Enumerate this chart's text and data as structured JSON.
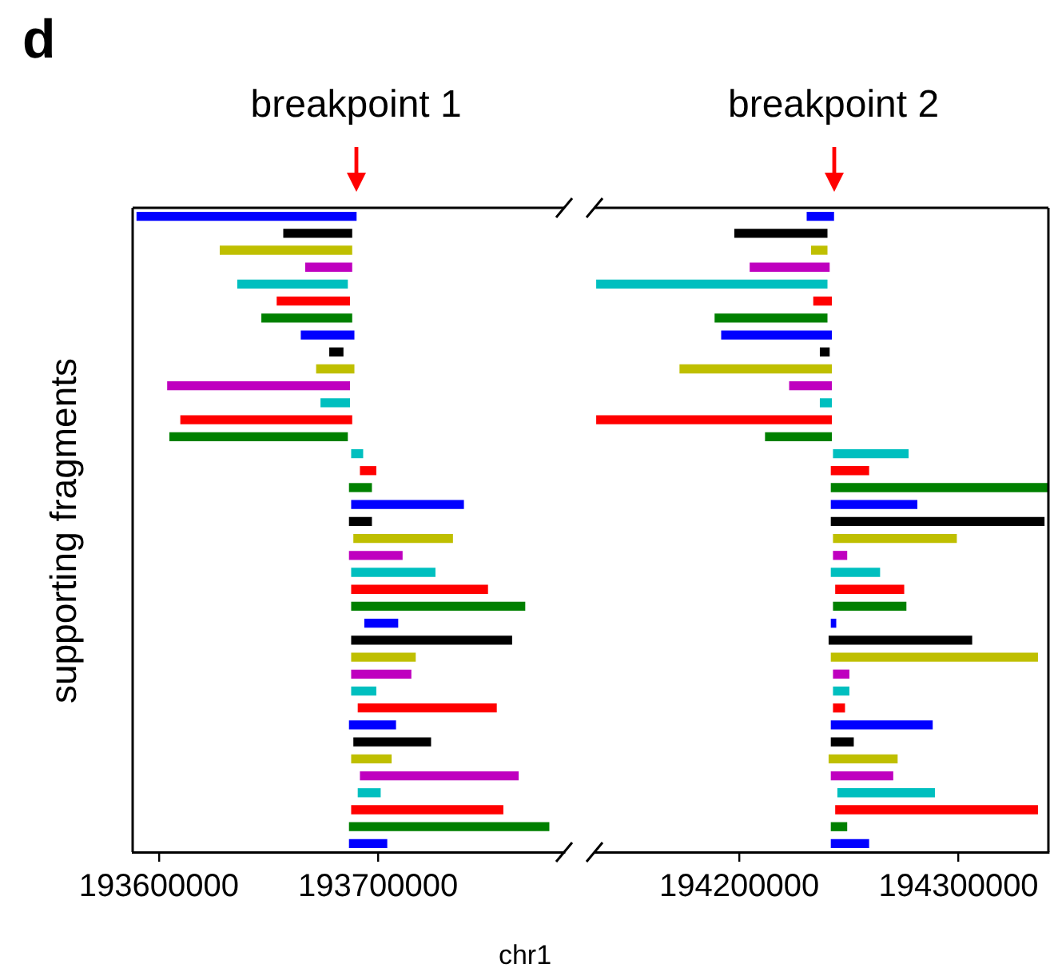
{
  "chart_data": [
    {
      "type": "bar",
      "orientation": "horizontal",
      "title": "d",
      "ylabel": "supporting fragments",
      "xlabel": "chr1",
      "annotations": [
        "breakpoint 1"
      ],
      "categories": [
        null,
        null,
        null,
        null,
        null,
        null,
        null,
        null,
        null,
        null,
        null,
        null,
        null,
        null,
        null,
        null,
        null,
        null,
        null,
        null,
        null,
        null,
        null,
        null,
        null,
        null,
        null,
        null,
        null,
        null,
        null,
        null,
        null,
        null,
        null,
        null,
        null,
        null
      ],
      "base": [
        193590000,
        193657000,
        193628000,
        193667000,
        193636000,
        193654000,
        193647000,
        193665000,
        193678000,
        193672000,
        193604000,
        193674000,
        193610000,
        193605000,
        193688000,
        193692000,
        193687000,
        193688000,
        193687000,
        193689000,
        193687000,
        193688000,
        193688000,
        193688000,
        193694000,
        193688000,
        193688000,
        193688000,
        193688000,
        193691000,
        193687000,
        193689000,
        193688000,
        193692000,
        193691000,
        193688000,
        193687000,
        193687000
      ],
      "values": [
        100000,
        31000,
        60000,
        21000,
        50000,
        33000,
        41000,
        24000,
        6000,
        17000,
        83000,
        13000,
        78000,
        81000,
        5000,
        7000,
        10000,
        51000,
        10000,
        45000,
        24000,
        38000,
        62000,
        79000,
        15000,
        73000,
        29000,
        27000,
        11000,
        63000,
        21000,
        35000,
        18000,
        72000,
        10000,
        69000,
        91000,
        17000
      ],
      "colors": [
        "#0000ff",
        "#000000",
        "#bfbf00",
        "#bf00bf",
        "#00bfbf",
        "#ff0000",
        "#008000",
        "#0000ff",
        "#000000",
        "#bfbf00",
        "#bf00bf",
        "#00bfbf",
        "#ff0000",
        "#008000",
        "#00bfbf",
        "#ff0000",
        "#008000",
        "#0000ff",
        "#000000",
        "#bfbf00",
        "#bf00bf",
        "#00bfbf",
        "#ff0000",
        "#008000",
        "#0000ff",
        "#000000",
        "#bfbf00",
        "#bf00bf",
        "#00bfbf",
        "#ff0000",
        "#0000ff",
        "#000000",
        "#bfbf00",
        "#bf00bf",
        "#00bfbf",
        "#ff0000",
        "#008000",
        "#0000ff"
      ],
      "xlim": [
        193588000,
        193785000
      ],
      "xticks": [
        193600000,
        193700000
      ],
      "tick_labels": "x"
    },
    {
      "type": "bar",
      "orientation": "horizontal",
      "annotations": [
        "breakpoint 2"
      ],
      "categories": [
        null,
        null,
        null,
        null,
        null,
        null,
        null,
        null,
        null,
        null,
        null,
        null,
        null,
        null,
        null,
        null,
        null,
        null,
        null,
        null,
        null,
        null,
        null,
        null,
        null,
        null,
        null,
        null,
        null,
        null,
        null,
        null,
        null,
        null,
        null,
        null,
        null,
        null
      ],
      "base": [
        194231000,
        194198000,
        194233000,
        194205000,
        194135000,
        194234000,
        194189000,
        194192000,
        194237000,
        194173000,
        194223000,
        194237000,
        194135000,
        194212000,
        194243000,
        194242000,
        194242000,
        194242000,
        194242000,
        194243000,
        194243000,
        194242000,
        194244000,
        194243000,
        194242000,
        194241000,
        194242000,
        194243000,
        194243000,
        194243000,
        194242000,
        194242000,
        194241000,
        194242000,
        194245000,
        194244000,
        194242000,
        194242000
      ],
      "values": [
        12000,
        42000,
        7000,
        36000,
        105000,
        8000,
        51000,
        50000,
        4000,
        69000,
        19000,
        5000,
        107000,
        30000,
        34000,
        17000,
        99000,
        39000,
        97000,
        56000,
        6000,
        22000,
        31000,
        33000,
        2000,
        65000,
        94000,
        7000,
        7000,
        5000,
        46000,
        10000,
        31000,
        28000,
        44000,
        92000,
        7000,
        17000
      ],
      "colors": [
        "#0000ff",
        "#000000",
        "#bfbf00",
        "#bf00bf",
        "#00bfbf",
        "#ff0000",
        "#008000",
        "#0000ff",
        "#000000",
        "#bfbf00",
        "#bf00bf",
        "#00bfbf",
        "#ff0000",
        "#008000",
        "#00bfbf",
        "#ff0000",
        "#008000",
        "#0000ff",
        "#000000",
        "#bfbf00",
        "#bf00bf",
        "#00bfbf",
        "#ff0000",
        "#008000",
        "#0000ff",
        "#000000",
        "#bfbf00",
        "#bf00bf",
        "#00bfbf",
        "#ff0000",
        "#0000ff",
        "#000000",
        "#bfbf00",
        "#bf00bf",
        "#00bfbf",
        "#ff0000",
        "#008000",
        "#0000ff"
      ],
      "xlim": [
        194134000,
        194341000
      ],
      "xticks": [
        194200000,
        194300000
      ],
      "tick_labels": "x"
    }
  ]
}
